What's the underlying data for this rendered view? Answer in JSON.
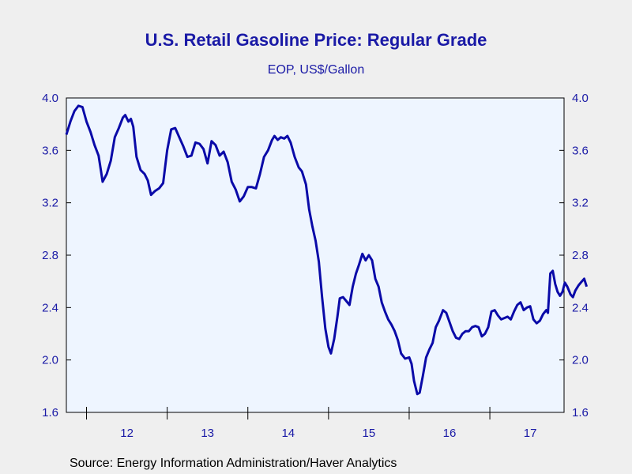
{
  "chart_data": {
    "type": "line",
    "title": "U.S. Retail Gasoline Price: Regular Grade",
    "subtitle": "EOP, US$/Gallon",
    "source": "Source:  Energy Information Administration/Haver Analytics",
    "ylim": [
      1.6,
      4.0
    ],
    "yticks": [
      "1.6",
      "2.0",
      "2.4",
      "2.8",
      "3.2",
      "3.6",
      "4.0"
    ],
    "xlim": [
      2011.75,
      2017.92
    ],
    "year_ticks": [
      2012,
      2013,
      2014,
      2015,
      2016,
      2017
    ],
    "year_labels": [
      "12",
      "13",
      "14",
      "15",
      "16",
      "17"
    ],
    "grid": false,
    "colors": {
      "line": "#0a0aa8",
      "plot_bg": "#eef5ff",
      "text": "#1a1aa6",
      "page_bg": "#efefef"
    },
    "series": [
      {
        "values": [
          [
            2011.75,
            3.72
          ],
          [
            2011.8,
            3.82
          ],
          [
            2011.85,
            3.9
          ],
          [
            2011.9,
            3.94
          ],
          [
            2011.95,
            3.93
          ],
          [
            2012.0,
            3.82
          ],
          [
            2012.05,
            3.74
          ],
          [
            2012.1,
            3.64
          ],
          [
            2012.15,
            3.56
          ],
          [
            2012.18,
            3.44
          ],
          [
            2012.2,
            3.36
          ],
          [
            2012.25,
            3.42
          ],
          [
            2012.3,
            3.52
          ],
          [
            2012.35,
            3.7
          ],
          [
            2012.4,
            3.77
          ],
          [
            2012.45,
            3.85
          ],
          [
            2012.48,
            3.87
          ],
          [
            2012.52,
            3.82
          ],
          [
            2012.55,
            3.84
          ],
          [
            2012.58,
            3.78
          ],
          [
            2012.62,
            3.55
          ],
          [
            2012.67,
            3.45
          ],
          [
            2012.72,
            3.42
          ],
          [
            2012.76,
            3.37
          ],
          [
            2012.8,
            3.26
          ],
          [
            2012.85,
            3.29
          ],
          [
            2012.9,
            3.31
          ],
          [
            2012.95,
            3.35
          ],
          [
            2013.0,
            3.6
          ],
          [
            2013.05,
            3.76
          ],
          [
            2013.1,
            3.77
          ],
          [
            2013.15,
            3.7
          ],
          [
            2013.2,
            3.63
          ],
          [
            2013.25,
            3.55
          ],
          [
            2013.3,
            3.56
          ],
          [
            2013.35,
            3.66
          ],
          [
            2013.4,
            3.65
          ],
          [
            2013.45,
            3.61
          ],
          [
            2013.5,
            3.5
          ],
          [
            2013.55,
            3.67
          ],
          [
            2013.6,
            3.64
          ],
          [
            2013.65,
            3.56
          ],
          [
            2013.7,
            3.59
          ],
          [
            2013.75,
            3.51
          ],
          [
            2013.8,
            3.36
          ],
          [
            2013.85,
            3.3
          ],
          [
            2013.9,
            3.21
          ],
          [
            2013.95,
            3.25
          ],
          [
            2014.0,
            3.32
          ],
          [
            2014.05,
            3.32
          ],
          [
            2014.1,
            3.31
          ],
          [
            2014.15,
            3.42
          ],
          [
            2014.2,
            3.55
          ],
          [
            2014.25,
            3.6
          ],
          [
            2014.3,
            3.68
          ],
          [
            2014.33,
            3.71
          ],
          [
            2014.37,
            3.68
          ],
          [
            2014.41,
            3.7
          ],
          [
            2014.45,
            3.69
          ],
          [
            2014.49,
            3.71
          ],
          [
            2014.53,
            3.66
          ],
          [
            2014.58,
            3.55
          ],
          [
            2014.63,
            3.47
          ],
          [
            2014.67,
            3.44
          ],
          [
            2014.72,
            3.34
          ],
          [
            2014.76,
            3.15
          ],
          [
            2014.8,
            3.02
          ],
          [
            2014.84,
            2.91
          ],
          [
            2014.88,
            2.75
          ],
          [
            2014.92,
            2.48
          ],
          [
            2014.96,
            2.24
          ],
          [
            2015.0,
            2.1
          ],
          [
            2015.03,
            2.05
          ],
          [
            2015.07,
            2.16
          ],
          [
            2015.11,
            2.33
          ],
          [
            2015.14,
            2.47
          ],
          [
            2015.18,
            2.48
          ],
          [
            2015.22,
            2.45
          ],
          [
            2015.26,
            2.42
          ],
          [
            2015.3,
            2.56
          ],
          [
            2015.34,
            2.66
          ],
          [
            2015.38,
            2.73
          ],
          [
            2015.42,
            2.81
          ],
          [
            2015.46,
            2.76
          ],
          [
            2015.5,
            2.8
          ],
          [
            2015.54,
            2.76
          ],
          [
            2015.58,
            2.62
          ],
          [
            2015.62,
            2.56
          ],
          [
            2015.66,
            2.44
          ],
          [
            2015.7,
            2.37
          ],
          [
            2015.74,
            2.31
          ],
          [
            2015.78,
            2.27
          ],
          [
            2015.82,
            2.22
          ],
          [
            2015.86,
            2.15
          ],
          [
            2015.9,
            2.05
          ],
          [
            2015.95,
            2.01
          ],
          [
            2016.0,
            2.02
          ],
          [
            2016.03,
            1.97
          ],
          [
            2016.06,
            1.84
          ],
          [
            2016.1,
            1.74
          ],
          [
            2016.13,
            1.75
          ],
          [
            2016.17,
            1.88
          ],
          [
            2016.21,
            2.02
          ],
          [
            2016.25,
            2.08
          ],
          [
            2016.29,
            2.13
          ],
          [
            2016.33,
            2.25
          ],
          [
            2016.37,
            2.3
          ],
          [
            2016.42,
            2.38
          ],
          [
            2016.46,
            2.36
          ],
          [
            2016.5,
            2.29
          ],
          [
            2016.54,
            2.22
          ],
          [
            2016.58,
            2.17
          ],
          [
            2016.62,
            2.16
          ],
          [
            2016.66,
            2.2
          ],
          [
            2016.7,
            2.22
          ],
          [
            2016.74,
            2.22
          ],
          [
            2016.78,
            2.25
          ],
          [
            2016.82,
            2.26
          ],
          [
            2016.86,
            2.25
          ],
          [
            2016.9,
            2.18
          ],
          [
            2016.94,
            2.2
          ],
          [
            2016.98,
            2.25
          ],
          [
            2017.02,
            2.37
          ],
          [
            2017.06,
            2.38
          ],
          [
            2017.1,
            2.34
          ],
          [
            2017.14,
            2.31
          ],
          [
            2017.18,
            2.32
          ],
          [
            2017.22,
            2.33
          ],
          [
            2017.26,
            2.31
          ],
          [
            2017.3,
            2.37
          ],
          [
            2017.34,
            2.42
          ],
          [
            2017.38,
            2.44
          ],
          [
            2017.42,
            2.38
          ],
          [
            2017.46,
            2.4
          ],
          [
            2017.5,
            2.41
          ],
          [
            2017.54,
            2.31
          ],
          [
            2017.58,
            2.28
          ],
          [
            2017.62,
            2.3
          ],
          [
            2017.66,
            2.35
          ],
          [
            2017.7,
            2.38
          ],
          [
            2017.72,
            2.36
          ],
          [
            2017.75,
            2.66
          ],
          [
            2017.78,
            2.68
          ],
          [
            2017.81,
            2.58
          ],
          [
            2017.84,
            2.52
          ],
          [
            2017.87,
            2.49
          ],
          [
            2017.9,
            2.52
          ],
          [
            2017.93,
            2.59
          ],
          [
            2017.96,
            2.56
          ],
          [
            2018.0,
            2.5
          ],
          [
            2018.03,
            2.48
          ],
          [
            2018.06,
            2.53
          ],
          [
            2018.1,
            2.57
          ],
          [
            2018.14,
            2.6
          ],
          [
            2018.17,
            2.62
          ],
          [
            2018.2,
            2.56
          ]
        ]
      }
    ]
  }
}
